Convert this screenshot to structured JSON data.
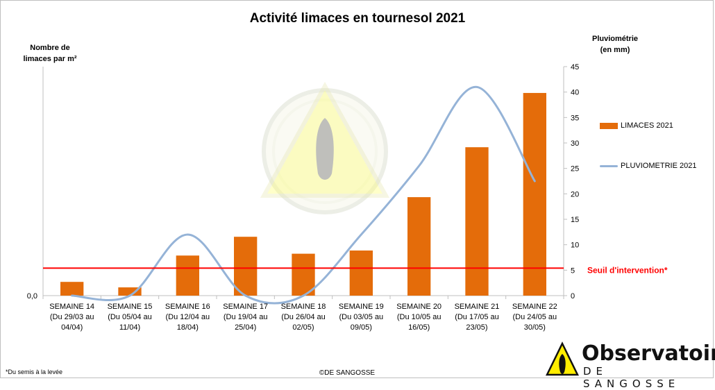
{
  "chart_data": {
    "type": "bar",
    "title": "Activité limaces en tournesol 2021",
    "ylabel_left_line1": "Nombre de",
    "ylabel_left_line2": "limaces par m²",
    "ylabel_right_line1": "Pluviométrie",
    "ylabel_right_line2": "(en mm)",
    "left_axis_ticks": [
      "0,0"
    ],
    "right_axis": {
      "ylim": [
        0,
        45
      ],
      "ticks": [
        0,
        5,
        10,
        15,
        20,
        25,
        30,
        35,
        40,
        45
      ]
    },
    "categories": [
      [
        "SEMAINE 14",
        "(Du 29/03 au",
        "04/04)"
      ],
      [
        "SEMAINE 15",
        "(Du 05/04 au",
        "11/04)"
      ],
      [
        "SEMAINE 16",
        "(Du 12/04 au",
        "18/04)"
      ],
      [
        "SEMAINE 17",
        "(Du 19/04 au",
        "25/04)"
      ],
      [
        "SEMAINE 18",
        "(Du 26/04 au",
        "02/05)"
      ],
      [
        "SEMAINE 19",
        "(Du 03/05 au",
        "09/05)"
      ],
      [
        "SEMAINE 20",
        "(Du 10/05 au",
        "16/05)"
      ],
      [
        "SEMAINE 21",
        "(Du 17/05 au",
        "23/05)"
      ],
      [
        "SEMAINE 22",
        "(Du 24/05 au",
        "30/05)"
      ]
    ],
    "series": [
      {
        "name": "LIMACES 2021",
        "kind": "bar",
        "axis": "left",
        "color": "#e46c0a",
        "values_relative": [
          0.06,
          0.036,
          0.175,
          0.257,
          0.183,
          0.197,
          0.43,
          0.648,
          0.885
        ]
      },
      {
        "name": "PLUVIOMETRIE 2021",
        "kind": "line",
        "axis": "right",
        "color": "#95b3d7",
        "values": [
          0,
          0,
          12,
          0,
          0,
          12,
          25.5,
          41,
          22.5
        ]
      }
    ],
    "threshold": {
      "label": "Seuil d'intervention*",
      "value_relative": 0.12,
      "color": "#ff0000"
    },
    "legend_position": "right",
    "grid": false
  },
  "footnote": "*Du semis à la levée",
  "copyright": "©DE SANGOSSE",
  "logo": {
    "main": "Observatoire",
    "registered": "®",
    "sub": "DE SANGOSSE"
  },
  "colors": {
    "bar": "#e46c0a",
    "line": "#95b3d7",
    "threshold": "#ff0000",
    "logo_yellow": "#ffed00"
  }
}
